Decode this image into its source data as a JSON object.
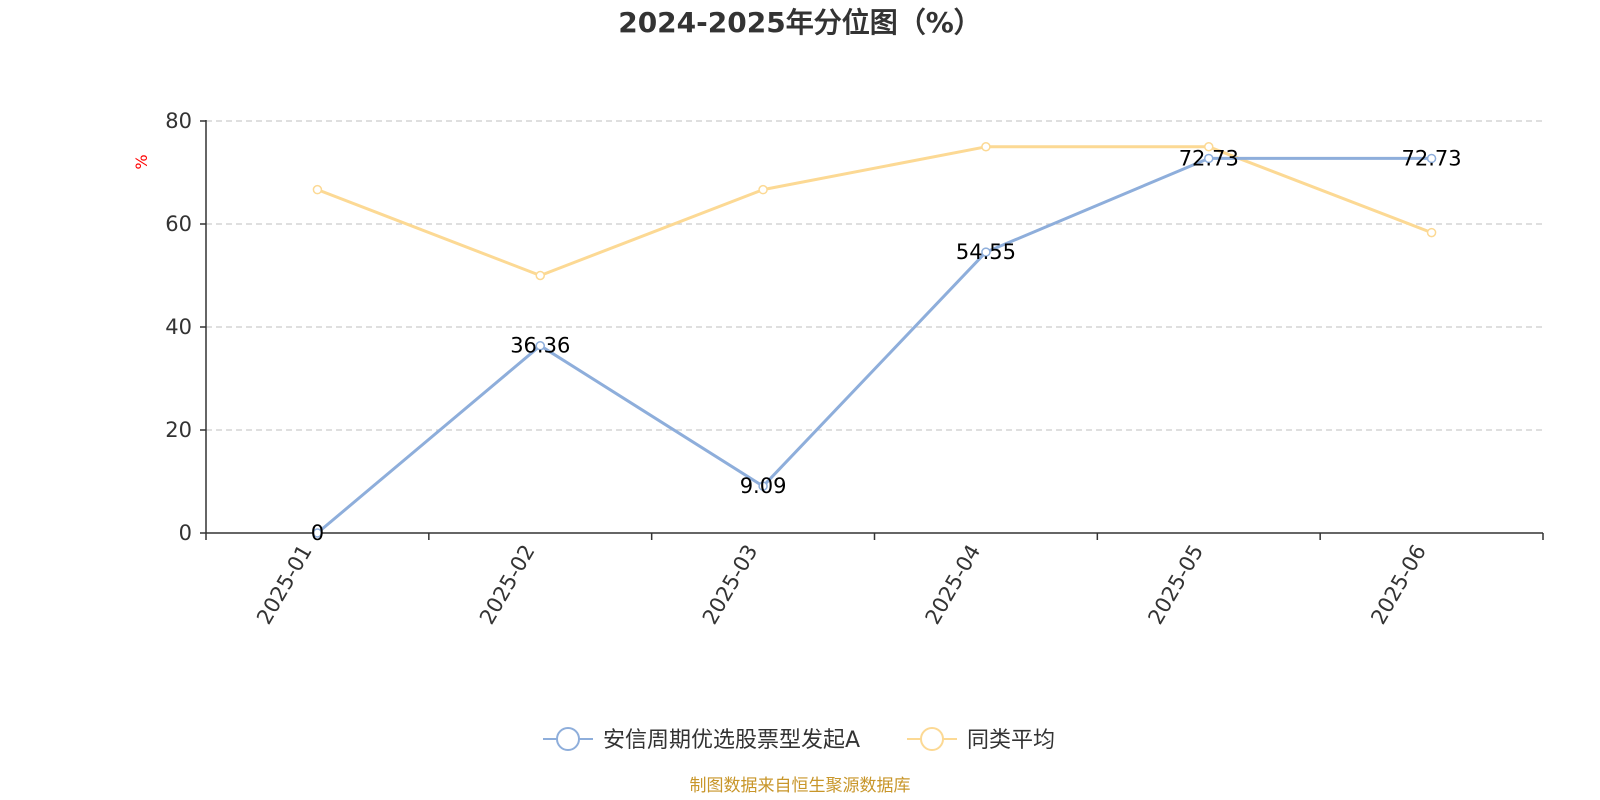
{
  "chart_data": {
    "type": "line",
    "title": "2024-2025年分位图（%）",
    "ylabel": "%",
    "xlabel": "",
    "categories": [
      "2025-01",
      "2025-02",
      "2025-03",
      "2025-04",
      "2025-05",
      "2025-06"
    ],
    "series": [
      {
        "name": "安信周期优选股票型发起A",
        "values": [
          0,
          36.36,
          9.09,
          54.55,
          72.73,
          72.73
        ],
        "labels": [
          "0",
          "36.36",
          "9.09",
          "54.55",
          "72.73",
          "72.73"
        ],
        "color": "#8eaedb"
      },
      {
        "name": "同类平均",
        "values": [
          66.67,
          50,
          66.67,
          75,
          75,
          58.33
        ],
        "color": "#fcd994"
      }
    ],
    "ylim": [
      0,
      80
    ],
    "yticks": [
      0,
      20,
      40,
      60,
      80
    ],
    "grid": true,
    "legend": "bottom-center"
  },
  "footer": {
    "source": "制图数据来自恒生聚源数据库"
  },
  "colors": {
    "unit_label": "#ff0000",
    "source": "#c8962a",
    "grid": "#cccccc",
    "axis": "#333333"
  }
}
